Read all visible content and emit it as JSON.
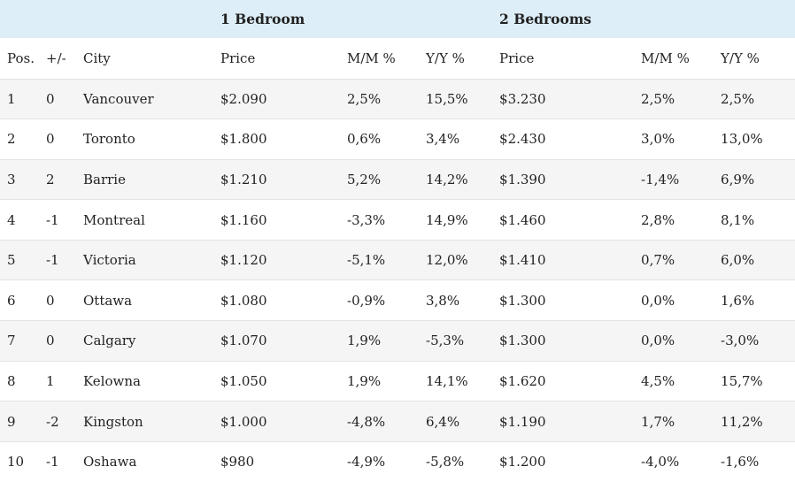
{
  "groups": {
    "one_bedroom": "1 Bedroom",
    "two_bedrooms": "2 Bedrooms"
  },
  "columns": {
    "pos": "Pos.",
    "change": "+/-",
    "city": "City",
    "price1": "Price",
    "mm1": "M/M %",
    "yy1": "Y/Y %",
    "price2": "Price",
    "mm2": "M/M %",
    "yy2": "Y/Y %"
  },
  "rows": [
    {
      "pos": "1",
      "change": "0",
      "city": "Vancouver",
      "price1": "$2.090",
      "mm1": "2,5%",
      "yy1": "15,5%",
      "price2": "$3.230",
      "mm2": "2,5%",
      "yy2": "2,5%"
    },
    {
      "pos": "2",
      "change": "0",
      "city": "Toronto",
      "price1": "$1.800",
      "mm1": "0,6%",
      "yy1": "3,4%",
      "price2": "$2.430",
      "mm2": "3,0%",
      "yy2": "13,0%"
    },
    {
      "pos": "3",
      "change": "2",
      "city": "Barrie",
      "price1": "$1.210",
      "mm1": "5,2%",
      "yy1": "14,2%",
      "price2": "$1.390",
      "mm2": "-1,4%",
      "yy2": "6,9%"
    },
    {
      "pos": "4",
      "change": "-1",
      "city": "Montreal",
      "price1": "$1.160",
      "mm1": "-3,3%",
      "yy1": "14,9%",
      "price2": "$1.460",
      "mm2": "2,8%",
      "yy2": "8,1%"
    },
    {
      "pos": "5",
      "change": "-1",
      "city": "Victoria",
      "price1": "$1.120",
      "mm1": "-5,1%",
      "yy1": "12,0%",
      "price2": "$1.410",
      "mm2": "0,7%",
      "yy2": "6,0%"
    },
    {
      "pos": "6",
      "change": "0",
      "city": "Ottawa",
      "price1": "$1.080",
      "mm1": "-0,9%",
      "yy1": "3,8%",
      "price2": "$1.300",
      "mm2": "0,0%",
      "yy2": "1,6%"
    },
    {
      "pos": "7",
      "change": "0",
      "city": "Calgary",
      "price1": "$1.070",
      "mm1": "1,9%",
      "yy1": "-5,3%",
      "price2": "$1.300",
      "mm2": "0,0%",
      "yy2": "-3,0%"
    },
    {
      "pos": "8",
      "change": "1",
      "city": "Kelowna",
      "price1": "$1.050",
      "mm1": "1,9%",
      "yy1": "14,1%",
      "price2": "$1.620",
      "mm2": "4,5%",
      "yy2": "15,7%"
    },
    {
      "pos": "9",
      "change": "-2",
      "city": "Kingston",
      "price1": "$1.000",
      "mm1": "-4,8%",
      "yy1": "6,4%",
      "price2": "$1.190",
      "mm2": "1,7%",
      "yy2": "11,2%"
    },
    {
      "pos": "10",
      "change": "-1",
      "city": "Oshawa",
      "price1": "$980",
      "mm1": "-4,9%",
      "yy1": "-5,8%",
      "price2": "$1.200",
      "mm2": "-4,0%",
      "yy2": "-1,6%"
    }
  ],
  "colors": {
    "header_band": "#ddeef8",
    "stripe": "#f5f5f5",
    "text": "#222222"
  }
}
